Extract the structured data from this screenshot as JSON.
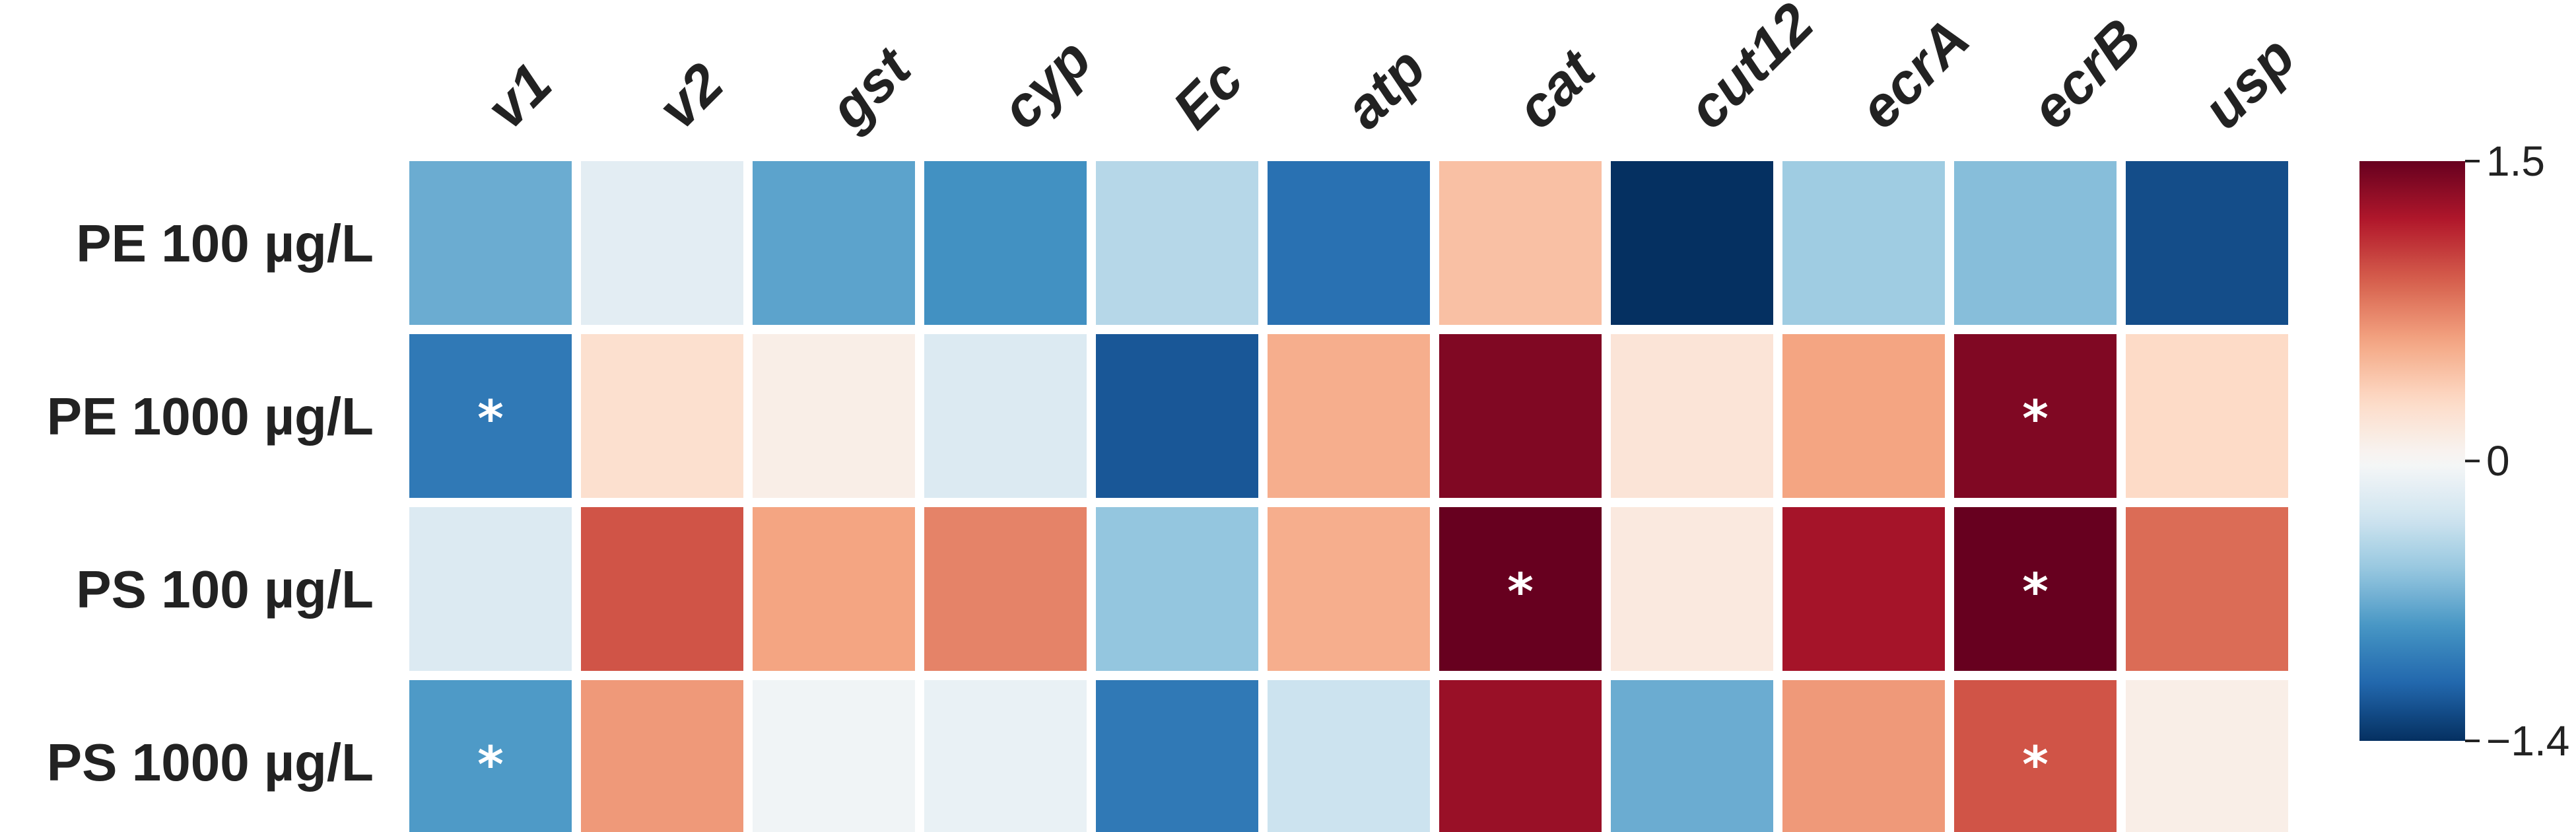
{
  "chart_data": {
    "type": "heatmap",
    "columns": [
      "v1",
      "v2",
      "gst",
      "cyp",
      "Ec",
      "atp",
      "cat",
      "cut12",
      "ecrA",
      "ecrB",
      "usp"
    ],
    "rows": [
      "PE 100 µg/L",
      "PE 1000 µg/L",
      "PS 100 µg/L",
      "PS 1000 µg/L"
    ],
    "values": [
      [
        -0.7,
        -0.15,
        -0.75,
        -0.85,
        -0.4,
        -1.05,
        0.45,
        -1.4,
        -0.5,
        -0.6,
        -1.25
      ],
      [
        -1.0,
        0.25,
        0.1,
        -0.2,
        -1.2,
        0.55,
        1.4,
        0.2,
        0.6,
        1.4,
        0.3
      ],
      [
        -0.2,
        0.95,
        0.6,
        0.75,
        -0.55,
        0.55,
        1.5,
        0.15,
        1.25,
        1.5,
        0.85
      ],
      [
        -0.8,
        0.65,
        -0.05,
        -0.1,
        -1.0,
        -0.3,
        1.3,
        -0.7,
        0.65,
        0.95,
        0.1
      ]
    ],
    "significant": [
      [
        false,
        false,
        false,
        false,
        false,
        false,
        false,
        false,
        false,
        false,
        false
      ],
      [
        true,
        false,
        false,
        false,
        false,
        false,
        false,
        false,
        false,
        true,
        false
      ],
      [
        false,
        false,
        false,
        false,
        false,
        false,
        true,
        false,
        false,
        true,
        false
      ],
      [
        true,
        false,
        false,
        false,
        false,
        false,
        false,
        false,
        false,
        true,
        false
      ]
    ],
    "significance_marker": "*",
    "colorbar": {
      "min": -1.4,
      "max": 1.5,
      "center": 0,
      "tick_labels": [
        "1.5",
        "0",
        "−1.4"
      ],
      "tick_values": [
        1.5,
        0,
        -1.4
      ],
      "colormap": "RdBu_r"
    },
    "colors": {
      "low": "#053061",
      "mid": "#f7f7f7",
      "high": "#67001f"
    }
  }
}
